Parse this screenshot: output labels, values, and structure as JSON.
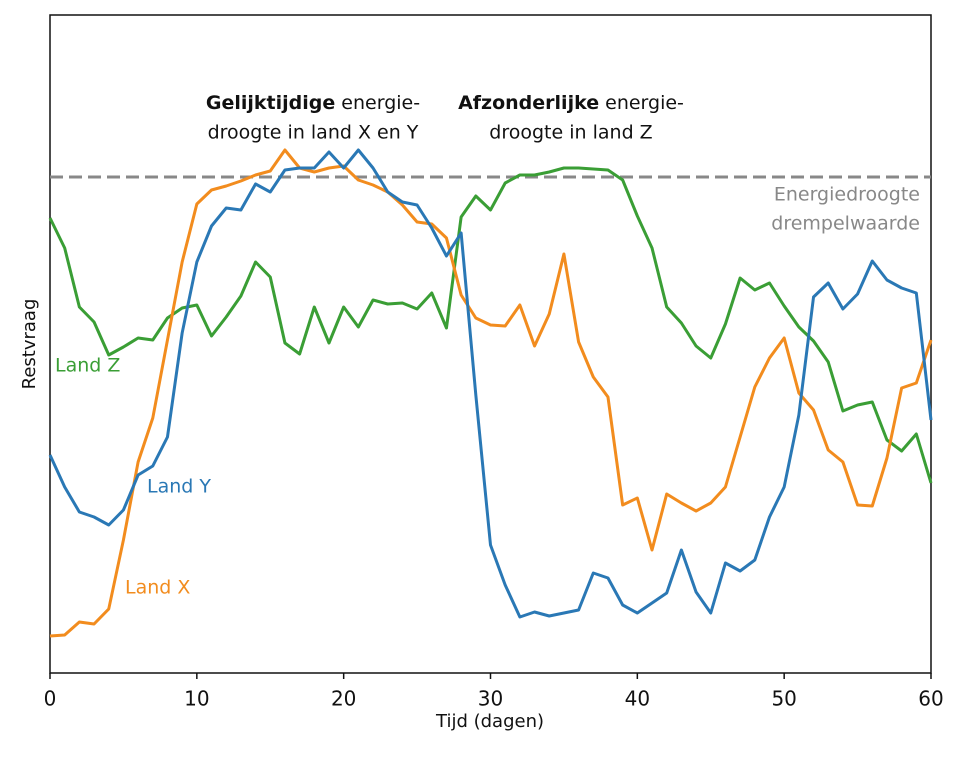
{
  "chart_data": {
    "type": "line",
    "xlabel": "Tijd (dagen)",
    "ylabel": "Restvraag",
    "xlim": [
      0,
      60
    ],
    "xticks": [
      0,
      10,
      20,
      30,
      40,
      50,
      60
    ],
    "ylim": [
      0,
      658
    ],
    "x": [
      0,
      1,
      2,
      3,
      4,
      5,
      6,
      7,
      8,
      9,
      10,
      11,
      12,
      13,
      14,
      15,
      16,
      17,
      18,
      19,
      20,
      21,
      22,
      23,
      24,
      25,
      26,
      27,
      28,
      29,
      30,
      31,
      32,
      33,
      34,
      35,
      36,
      37,
      38,
      39,
      40,
      41,
      42,
      43,
      44,
      45,
      46,
      47,
      48,
      49,
      50,
      51,
      52,
      53,
      54,
      55,
      56,
      57,
      58,
      59,
      60
    ],
    "series": [
      {
        "name": "Land X",
        "color": "#f28c1e",
        "values": [
          37,
          38,
          51,
          49,
          64,
          133,
          211,
          255,
          333,
          411,
          469,
          483,
          487,
          492,
          498,
          502,
          523,
          505,
          501,
          505,
          507,
          493,
          488,
          481,
          468,
          451,
          449,
          435,
          378,
          355,
          348,
          347,
          368,
          327,
          359,
          419,
          331,
          296,
          276,
          168,
          175,
          123,
          179,
          170,
          162,
          170,
          186,
          236,
          286,
          315,
          335,
          280,
          263,
          223,
          211,
          168,
          167,
          215,
          285,
          290,
          333
        ]
      },
      {
        "name": "Land Y",
        "color": "#2a78b5",
        "values": [
          218,
          186,
          161,
          156,
          148,
          163,
          198,
          207,
          236,
          340,
          411,
          447,
          465,
          463,
          489,
          481,
          503,
          505,
          505,
          521,
          505,
          523,
          505,
          481,
          471,
          468,
          445,
          417,
          440,
          278,
          128,
          88,
          56,
          61,
          57,
          60,
          63,
          100,
          95,
          68,
          60,
          70,
          80,
          123,
          81,
          60,
          110,
          102,
          113,
          156,
          186,
          258,
          376,
          390,
          364,
          379,
          412,
          393,
          385,
          380,
          253
        ]
      },
      {
        "name": "Land Z",
        "color": "#3a9e35",
        "values": [
          455,
          425,
          366,
          351,
          318,
          326,
          335,
          333,
          355,
          365,
          368,
          337,
          356,
          377,
          411,
          396,
          330,
          319,
          366,
          330,
          366,
          346,
          373,
          369,
          370,
          364,
          380,
          345,
          456,
          477,
          463,
          490,
          498,
          498,
          501,
          505,
          505,
          504,
          503,
          493,
          457,
          425,
          366,
          350,
          327,
          315,
          349,
          395,
          383,
          390,
          367,
          346,
          332,
          311,
          262,
          268,
          271,
          233,
          222,
          239,
          190
        ]
      }
    ],
    "threshold": {
      "value": 496,
      "color": "#888888",
      "label": [
        "Energiedroogte",
        "drempelwaarde"
      ]
    },
    "annotations": [
      {
        "bold": "Gelijktijdige",
        "text": " energie-",
        "line2": "droogte in land X en Y"
      },
      {
        "bold": "Afzonderlijke",
        "text": " energie-",
        "line2": "droogte in land Z"
      }
    ]
  }
}
